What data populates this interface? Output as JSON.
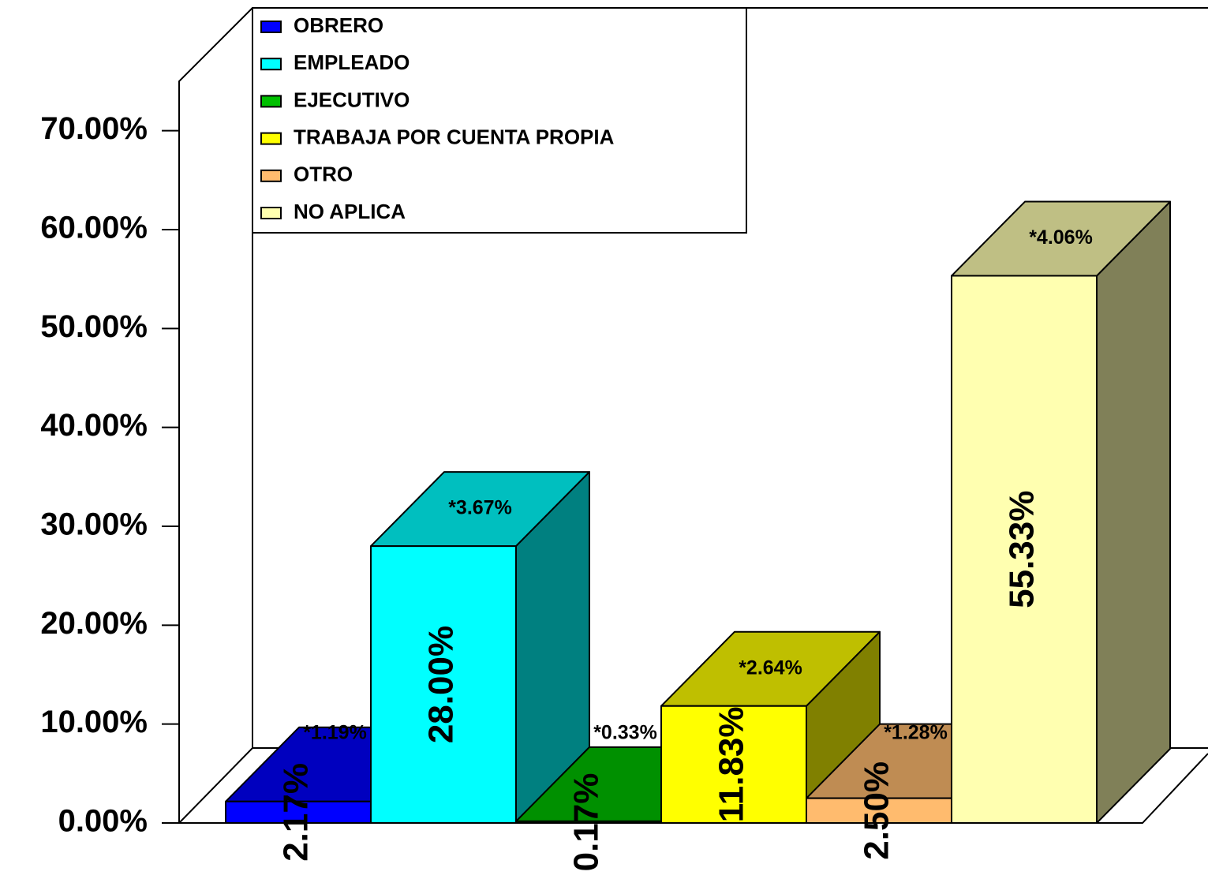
{
  "chart_data": {
    "type": "bar",
    "categories": [
      "OBRERO",
      "EMPLEADO",
      "EJECUTIVO",
      "TRABAJA POR CUENTA PROPIA",
      "OTRO",
      "NO APLICA"
    ],
    "values": [
      2.17,
      28.0,
      0.17,
      11.83,
      2.5,
      55.33
    ],
    "value_labels": [
      "2.17%",
      "28.00%",
      "0.17%",
      "11.83%",
      "2.50%",
      "55.33%"
    ],
    "annotations": [
      "*1.19%",
      "*3.67%",
      "*0.33%",
      "*2.64%",
      "*1.28%",
      "*4.06%"
    ],
    "colors": [
      "#0000ff",
      "#00ffff",
      "#00c000",
      "#ffff00",
      "#ffbb6e",
      "#ffffb0"
    ],
    "ylim": [
      0,
      75
    ],
    "yticks": [
      {
        "value": 0,
        "label": "0.00%"
      },
      {
        "value": 10,
        "label": "10.00%"
      },
      {
        "value": 20,
        "label": "20.00%"
      },
      {
        "value": 30,
        "label": "30.00%"
      },
      {
        "value": 40,
        "label": "40.00%"
      },
      {
        "value": 50,
        "label": "50.00%"
      },
      {
        "value": 60,
        "label": "60.00%"
      },
      {
        "value": 70,
        "label": "70.00%"
      }
    ],
    "legend": "top-left"
  }
}
